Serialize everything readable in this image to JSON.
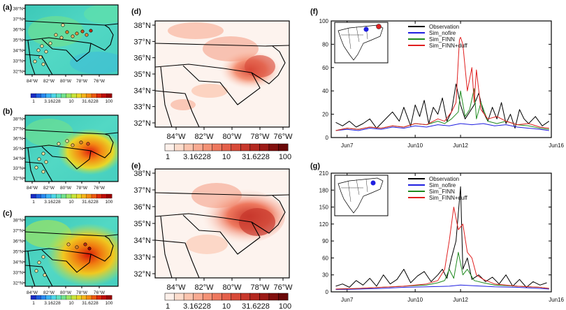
{
  "panels": [
    {
      "id": "a",
      "label": "(a)"
    },
    {
      "id": "b",
      "label": "(b)"
    },
    {
      "id": "c",
      "label": "(c)"
    },
    {
      "id": "d",
      "label": "(d)"
    },
    {
      "id": "e",
      "label": "(e)"
    },
    {
      "id": "f",
      "label": "(f)"
    },
    {
      "id": "g",
      "label": "(g)"
    }
  ],
  "map_axes": {
    "lat_small": [
      "38°N",
      "37°N",
      "36°N",
      "35°N",
      "34°N",
      "33°N",
      "32°N"
    ],
    "lon_small": [
      "84°W",
      "82°W",
      "80°W",
      "78°W",
      "76°W"
    ],
    "lat_large": [
      "38°N",
      "37°N",
      "36°N",
      "35°N",
      "34°N",
      "33°N",
      "32°N"
    ],
    "lon_large": [
      "84°W",
      "82°W",
      "80°W",
      "78°W",
      "76°W"
    ]
  },
  "colorbars": {
    "rainbow_labels": [
      "1",
      "3.16228",
      "10",
      "31.6228",
      "100"
    ],
    "reds_labels": [
      "1",
      "3.16228",
      "10",
      "31.6228",
      "100"
    ],
    "rainbow_colors": [
      "#1a2cc4",
      "#1f5ee0",
      "#2a8af0",
      "#3cb4f4",
      "#4fd6e8",
      "#5fe0c0",
      "#72e28e",
      "#9ce462",
      "#c6e43c",
      "#e8d828",
      "#f4b41c",
      "#f48a14",
      "#ec5a10",
      "#dc2a0c",
      "#c00c08",
      "#980000"
    ],
    "reds_colors": [
      "#fdf0ea",
      "#fcdccc",
      "#fbc4ae",
      "#f9ab92",
      "#f49276",
      "#ee785e",
      "#e4604a",
      "#d84a38",
      "#c8382c",
      "#b42820",
      "#9c1a16",
      "#82100e",
      "#6a0808"
    ]
  },
  "chart_data": [
    {
      "id": "f",
      "type": "line",
      "x_ticks": [
        "Jun7",
        "Jun10",
        "Jun12",
        "Jun16"
      ],
      "x_tick_values": [
        7,
        10,
        12,
        16
      ],
      "xlim": [
        6.3,
        16
      ],
      "ylim": [
        0,
        100
      ],
      "y_ticks": [
        0,
        20,
        40,
        60,
        80,
        100
      ],
      "legend": [
        "Observation",
        "Sim_nofire",
        "Sim_FINN",
        "Sim_FINN+duff"
      ],
      "legend_position": "top",
      "series": [
        {
          "name": "Observation",
          "color": "#000000",
          "x": [
            6.5,
            6.8,
            7.1,
            7.4,
            7.7,
            8.0,
            8.3,
            8.5,
            8.8,
            9.0,
            9.3,
            9.5,
            9.8,
            10.0,
            10.2,
            10.4,
            10.6,
            10.8,
            11.0,
            11.2,
            11.4,
            11.6,
            11.8,
            12.0,
            12.2,
            12.4,
            12.6,
            12.8,
            13.0,
            13.2,
            13.4,
            13.6,
            13.8,
            14.0,
            14.2,
            14.4,
            14.6,
            14.8,
            15.0,
            15.3,
            15.6,
            15.9
          ],
          "y": [
            13,
            10,
            14,
            9,
            12,
            16,
            8,
            12,
            18,
            22,
            14,
            26,
            10,
            28,
            18,
            32,
            12,
            26,
            20,
            34,
            14,
            22,
            46,
            28,
            16,
            22,
            28,
            38,
            22,
            14,
            26,
            16,
            30,
            12,
            20,
            8,
            24,
            16,
            12,
            18,
            10,
            14
          ]
        },
        {
          "name": "Sim_nofire",
          "color": "#1f1fe0",
          "x": [
            6.5,
            7.0,
            7.5,
            8.0,
            8.5,
            9.0,
            9.5,
            10.0,
            10.5,
            11.0,
            11.5,
            12.0,
            12.5,
            13.0,
            13.5,
            14.0,
            14.5,
            15.0,
            15.5,
            15.9
          ],
          "y": [
            6,
            7,
            6,
            8,
            7,
            9,
            8,
            10,
            9,
            11,
            10,
            12,
            11,
            12,
            10,
            11,
            9,
            8,
            7,
            6
          ]
        },
        {
          "name": "Sim_FINN",
          "color": "#1f8a1f",
          "x": [
            6.5,
            7.0,
            7.5,
            8.0,
            8.5,
            9.0,
            9.5,
            10.0,
            10.5,
            11.0,
            11.3,
            11.6,
            11.9,
            12.0,
            12.2,
            12.4,
            12.6,
            12.7,
            12.9,
            13.2,
            13.6,
            14.0,
            14.5,
            15.0,
            15.5,
            15.9
          ],
          "y": [
            6,
            8,
            7,
            9,
            8,
            10,
            9,
            12,
            11,
            14,
            12,
            16,
            22,
            40,
            18,
            24,
            42,
            16,
            30,
            14,
            12,
            14,
            11,
            10,
            8,
            7
          ]
        },
        {
          "name": "Sim_FINN+duff",
          "color": "#e01f1f",
          "x": [
            6.5,
            7.0,
            7.5,
            8.0,
            8.5,
            9.0,
            9.5,
            10.0,
            10.5,
            11.0,
            11.3,
            11.6,
            11.8,
            11.95,
            12.0,
            12.1,
            12.3,
            12.5,
            12.6,
            12.7,
            12.9,
            13.2,
            13.6,
            14.0,
            14.5,
            15.0,
            15.5,
            15.9
          ],
          "y": [
            6,
            8,
            7,
            9,
            8,
            10,
            9,
            12,
            11,
            16,
            14,
            22,
            30,
            84,
            86,
            80,
            40,
            60,
            30,
            58,
            24,
            16,
            18,
            14,
            11,
            12,
            9,
            8
          ]
        }
      ]
    },
    {
      "id": "g",
      "type": "line",
      "x_ticks": [
        "Jun7",
        "Jun10",
        "Jun12",
        "Jun16"
      ],
      "x_tick_values": [
        7,
        10,
        12,
        16
      ],
      "xlim": [
        6.3,
        16
      ],
      "ylim": [
        0,
        210
      ],
      "y_ticks": [
        0,
        30,
        60,
        90,
        120,
        150,
        180,
        210
      ],
      "legend": [
        "Observation",
        "Sim_nofire",
        "Sim_FINN",
        "Sim_FINN+duff"
      ],
      "legend_position": "top",
      "series": [
        {
          "name": "Observation",
          "color": "#000000",
          "x": [
            6.5,
            6.8,
            7.1,
            7.4,
            7.7,
            8.0,
            8.3,
            8.6,
            8.9,
            9.2,
            9.5,
            9.8,
            10.1,
            10.4,
            10.7,
            11.0,
            11.2,
            11.4,
            11.6,
            11.8,
            12.0,
            12.1,
            12.3,
            12.5,
            12.8,
            13.1,
            13.4,
            13.7,
            14.0,
            14.3,
            14.6,
            14.9,
            15.2,
            15.5,
            15.8
          ],
          "y": [
            10,
            14,
            8,
            20,
            12,
            24,
            10,
            30,
            14,
            22,
            40,
            16,
            28,
            36,
            18,
            30,
            40,
            24,
            60,
            90,
            186,
            40,
            60,
            22,
            30,
            18,
            26,
            14,
            30,
            10,
            22,
            8,
            18,
            12,
            16
          ]
        },
        {
          "name": "Sim_nofire",
          "color": "#1f1fe0",
          "x": [
            6.5,
            7.5,
            8.5,
            9.5,
            10.5,
            11.5,
            12.0,
            12.5,
            13.5,
            14.5,
            15.5,
            15.9
          ],
          "y": [
            4,
            5,
            6,
            8,
            9,
            10,
            12,
            11,
            9,
            8,
            6,
            5
          ]
        },
        {
          "name": "Sim_FINN",
          "color": "#1f8a1f",
          "x": [
            6.5,
            7.5,
            8.5,
            9.5,
            10.5,
            11.0,
            11.3,
            11.5,
            11.7,
            11.9,
            12.1,
            12.3,
            12.6,
            13.0,
            13.5,
            14.5,
            15.5,
            15.9
          ],
          "y": [
            5,
            6,
            8,
            10,
            12,
            16,
            20,
            40,
            24,
            70,
            30,
            40,
            20,
            16,
            12,
            10,
            8,
            6
          ]
        },
        {
          "name": "Sim_FINN+duff",
          "color": "#e01f1f",
          "x": [
            6.5,
            7.5,
            8.5,
            9.5,
            10.5,
            11.0,
            11.3,
            11.5,
            11.7,
            11.9,
            12.1,
            12.3,
            12.5,
            12.7,
            13.0,
            13.5,
            14.5,
            15.5,
            15.9
          ],
          "y": [
            5,
            6,
            8,
            10,
            14,
            20,
            40,
            90,
            150,
            110,
            120,
            70,
            60,
            30,
            22,
            14,
            10,
            8,
            6
          ]
        }
      ]
    }
  ]
}
